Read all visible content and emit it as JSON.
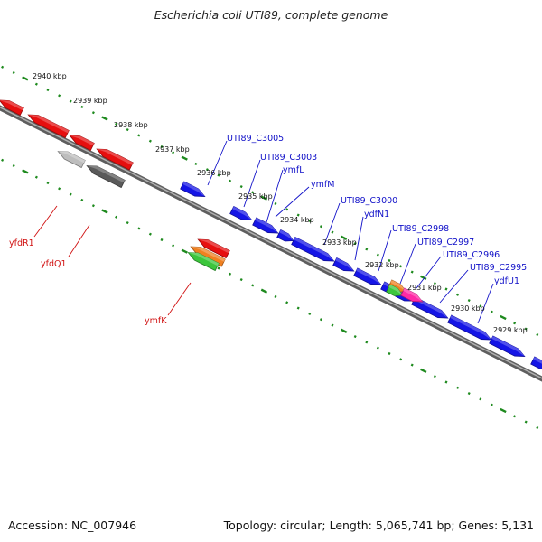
{
  "title": "Escherichia coli UTI89, complete genome",
  "footer": {
    "accession": "Accession: NC_007946",
    "summary": "Topology: circular; Length: 5,065,741 bp; Genes: 5,131"
  },
  "colors": {
    "forward_gene": "#1515e6",
    "reverse_gene": "#e60f0f",
    "backbone": "#7a7a7a",
    "tick": "#1e8a1e",
    "label_forward": "#1010c8",
    "label_reverse": "#d01010"
  },
  "position_ticks": [
    {
      "label": "2940 kbp"
    },
    {
      "label": "2939 kbp"
    },
    {
      "label": "2938 kbp"
    },
    {
      "label": "2937 kbp"
    },
    {
      "label": "2936 kbp"
    },
    {
      "label": "2935 kbp"
    },
    {
      "label": "2934 kbp"
    },
    {
      "label": "2933 kbp"
    },
    {
      "label": "2932 kbp"
    },
    {
      "label": "2931 kbp"
    },
    {
      "label": "2930 kbp"
    },
    {
      "label": "2929 kbp"
    }
  ],
  "forward_gene_labels": [
    "UTI89_C3005",
    "UTI89_C3003",
    "ymfL",
    "ymfM",
    "UTI89_C3000",
    "ydfN1",
    "UTI89_C2998",
    "UTI89_C2997",
    "UTI89_C2996",
    "UTI89_C2995",
    "ydfU1"
  ],
  "reverse_gene_labels": [
    "yfdR1",
    "yfdQ1",
    "ymfK"
  ]
}
